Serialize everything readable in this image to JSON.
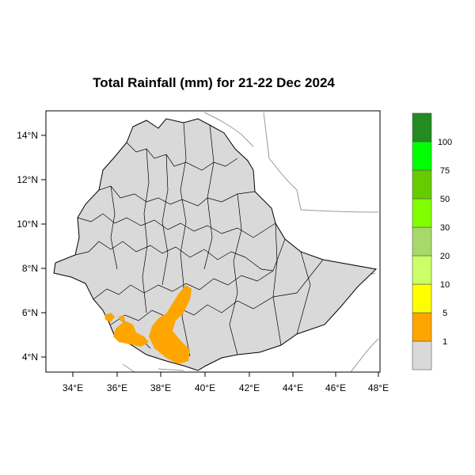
{
  "title": "Total Rainfall (mm) for 21-22 Dec 2024",
  "map": {
    "x_ticks": [
      "34°E",
      "36°E",
      "38°E",
      "40°E",
      "42°E",
      "44°E",
      "46°E",
      "48°E"
    ],
    "y_ticks": [
      "14°N",
      "12°N",
      "10°N",
      "8°N",
      "6°N",
      "4°N"
    ],
    "country_fill": "#d9d9d9",
    "rain_fill": "#ffa500"
  },
  "legend": {
    "items": [
      {
        "label": "1",
        "color": "#d9d9d9"
      },
      {
        "label": "5",
        "color": "#ffa500"
      },
      {
        "label": "10",
        "color": "#ffff00"
      },
      {
        "label": "20",
        "color": "#ccff66"
      },
      {
        "label": "30",
        "color": "#a6d96a"
      },
      {
        "label": "50",
        "color": "#80ff00"
      },
      {
        "label": "75",
        "color": "#66cc00"
      },
      {
        "label": "100",
        "color": "#00ff00"
      },
      {
        "label": "",
        "color": "#228b22"
      }
    ]
  }
}
